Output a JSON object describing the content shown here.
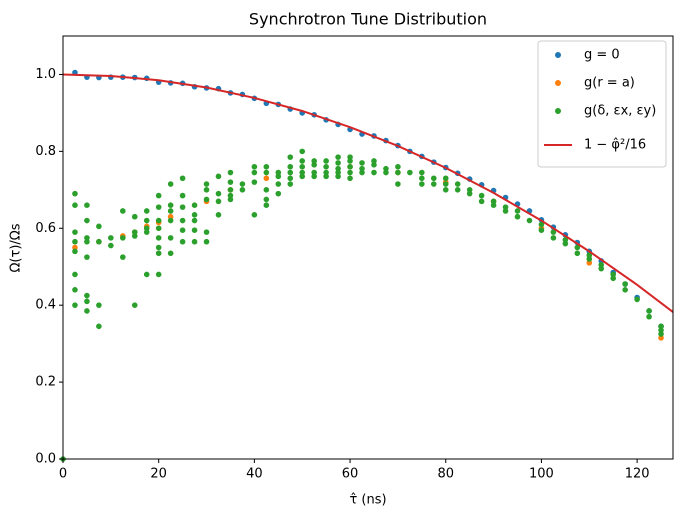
{
  "chart_data": {
    "type": "scatter",
    "title": "Synchrotron Tune Distribution",
    "xlabel": "τ̂ (ns)",
    "ylabel": "Ω(τ)/Ωs",
    "xlim": [
      0,
      127.5
    ],
    "ylim": [
      0,
      1.1
    ],
    "xticks": [
      0,
      20,
      40,
      60,
      80,
      100,
      120
    ],
    "yticks": [
      {
        "value": 0,
        "label": "0.0"
      },
      0.2,
      0.4,
      0.6,
      0.8,
      {
        "value": 1,
        "label": "1.0"
      }
    ],
    "legend": "upper right",
    "series": [
      {
        "name": "g = 0",
        "type": "scatter",
        "color": "#1f77b4",
        "x": [
          2.5,
          5,
          7.5,
          10,
          12.5,
          15,
          17.5,
          20,
          22.5,
          25,
          27.5,
          30,
          32.5,
          35,
          37.5,
          40,
          42.5,
          45,
          47.5,
          50,
          52.5,
          55,
          57.5,
          60,
          62.5,
          65,
          67.5,
          70,
          72.5,
          75,
          77.5,
          80,
          82.5,
          85,
          87.5,
          90,
          92.5,
          95,
          97.5,
          100,
          102.5,
          105,
          107.5,
          110,
          112.5,
          115,
          117.5,
          120,
          122.5,
          125
        ],
        "values": [
          1.005,
          0.993,
          0.992,
          0.993,
          0.993,
          0.992,
          0.99,
          0.98,
          0.978,
          0.977,
          0.968,
          0.965,
          0.963,
          0.952,
          0.948,
          0.938,
          0.925,
          0.922,
          0.91,
          0.9,
          0.895,
          0.882,
          0.87,
          0.857,
          0.845,
          0.84,
          0.828,
          0.815,
          0.8,
          0.787,
          0.772,
          0.758,
          0.743,
          0.728,
          0.713,
          0.698,
          0.68,
          0.663,
          0.645,
          0.622,
          0.603,
          0.583,
          0.563,
          0.54,
          0.515,
          0.485,
          0.455,
          0.42,
          0.385,
          0.345
        ]
      },
      {
        "name": "g(r = a)",
        "type": "scatter",
        "color": "#ff7f0e",
        "x": [
          2.5,
          7.5,
          12.5,
          15,
          17.5,
          20,
          22.5,
          30,
          35,
          42.5,
          60,
          70,
          80,
          90,
          100,
          110,
          125
        ],
        "values": [
          0.55,
          0.565,
          0.58,
          0.59,
          0.605,
          0.615,
          0.63,
          0.67,
          0.7,
          0.73,
          0.76,
          0.745,
          0.72,
          0.67,
          0.6,
          0.51,
          0.315
        ]
      },
      {
        "name": "g(δ, εx, εy)",
        "type": "scatter",
        "color": "#2ca02c",
        "x": [
          0,
          2.5,
          2.5,
          2.5,
          2.5,
          2.5,
          2.5,
          2.5,
          2.5,
          5,
          5,
          5,
          5,
          5,
          5,
          5,
          5,
          7.5,
          7.5,
          7.5,
          7.5,
          10,
          10,
          12.5,
          12.5,
          12.5,
          15,
          15,
          15,
          15,
          17.5,
          17.5,
          17.5,
          17.5,
          17.5,
          20,
          20,
          20,
          20,
          20,
          20,
          20,
          20,
          22.5,
          22.5,
          22.5,
          22.5,
          22.5,
          22.5,
          25,
          25,
          25,
          25,
          25,
          25,
          27.5,
          27.5,
          27.5,
          27.5,
          27.5,
          30,
          30,
          30,
          30,
          30,
          32.5,
          32.5,
          32.5,
          32.5,
          35,
          35,
          35,
          35,
          35,
          37.5,
          37.5,
          40,
          40,
          40,
          40,
          42.5,
          42.5,
          42.5,
          42.5,
          42.5,
          45,
          45,
          45,
          45,
          47.5,
          47.5,
          47.5,
          47.5,
          47.5,
          50,
          50,
          50,
          50,
          50,
          52.5,
          52.5,
          52.5,
          52.5,
          55,
          55,
          55,
          55,
          57.5,
          57.5,
          57.5,
          57.5,
          57.5,
          60,
          60,
          60,
          60,
          60,
          62.5,
          62.5,
          62.5,
          65,
          65,
          65,
          67.5,
          67.5,
          70,
          70,
          70,
          72.5,
          75,
          75,
          75,
          77.5,
          77.5,
          80,
          80,
          80,
          82.5,
          82.5,
          85,
          85,
          87.5,
          87.5,
          90,
          90,
          92.5,
          92.5,
          95,
          95,
          97.5,
          100,
          100,
          102.5,
          102.5,
          105,
          105,
          107.5,
          107.5,
          110,
          110,
          112.5,
          112.5,
          115,
          115,
          117.5,
          117.5,
          120,
          122.5,
          122.5,
          125,
          125,
          125
        ],
        "values": [
          0,
          0.69,
          0.66,
          0.59,
          0.565,
          0.54,
          0.48,
          0.44,
          0.4,
          0.66,
          0.62,
          0.575,
          0.565,
          0.525,
          0.425,
          0.41,
          0.385,
          0.605,
          0.565,
          0.4,
          0.345,
          0.575,
          0.555,
          0.645,
          0.575,
          0.525,
          0.63,
          0.59,
          0.58,
          0.4,
          0.645,
          0.62,
          0.6,
          0.59,
          0.48,
          0.685,
          0.655,
          0.62,
          0.6,
          0.575,
          0.55,
          0.535,
          0.48,
          0.715,
          0.66,
          0.645,
          0.62,
          0.575,
          0.535,
          0.73,
          0.685,
          0.655,
          0.62,
          0.595,
          0.565,
          0.66,
          0.635,
          0.62,
          0.595,
          0.565,
          0.715,
          0.7,
          0.675,
          0.59,
          0.565,
          0.735,
          0.69,
          0.67,
          0.635,
          0.745,
          0.72,
          0.7,
          0.685,
          0.675,
          0.715,
          0.7,
          0.76,
          0.745,
          0.72,
          0.635,
          0.76,
          0.745,
          0.7,
          0.675,
          0.66,
          0.745,
          0.735,
          0.715,
          0.69,
          0.785,
          0.76,
          0.745,
          0.73,
          0.715,
          0.8,
          0.775,
          0.76,
          0.745,
          0.735,
          0.775,
          0.765,
          0.745,
          0.735,
          0.775,
          0.76,
          0.745,
          0.735,
          0.785,
          0.77,
          0.755,
          0.745,
          0.735,
          0.785,
          0.775,
          0.76,
          0.745,
          0.73,
          0.77,
          0.755,
          0.745,
          0.775,
          0.765,
          0.745,
          0.755,
          0.745,
          0.76,
          0.745,
          0.715,
          0.745,
          0.745,
          0.73,
          0.715,
          0.73,
          0.715,
          0.73,
          0.715,
          0.7,
          0.715,
          0.7,
          0.7,
          0.69,
          0.685,
          0.67,
          0.67,
          0.66,
          0.655,
          0.645,
          0.645,
          0.63,
          0.62,
          0.61,
          0.595,
          0.59,
          0.575,
          0.57,
          0.56,
          0.55,
          0.535,
          0.53,
          0.52,
          0.505,
          0.495,
          0.48,
          0.47,
          0.455,
          0.44,
          0.415,
          0.385,
          0.37,
          0.345,
          0.335,
          0.325
        ]
      },
      {
        "name": "1 − φ̂²/16",
        "type": "line",
        "color": "#d62728",
        "x": [
          0,
          10,
          20,
          30,
          40,
          50,
          60,
          70,
          80,
          90,
          100,
          110,
          120,
          127.5
        ],
        "values": [
          1,
          0.996,
          0.985,
          0.966,
          0.939,
          0.905,
          0.863,
          0.814,
          0.757,
          0.692,
          0.62,
          0.54,
          0.453,
          0.382
        ]
      }
    ]
  }
}
